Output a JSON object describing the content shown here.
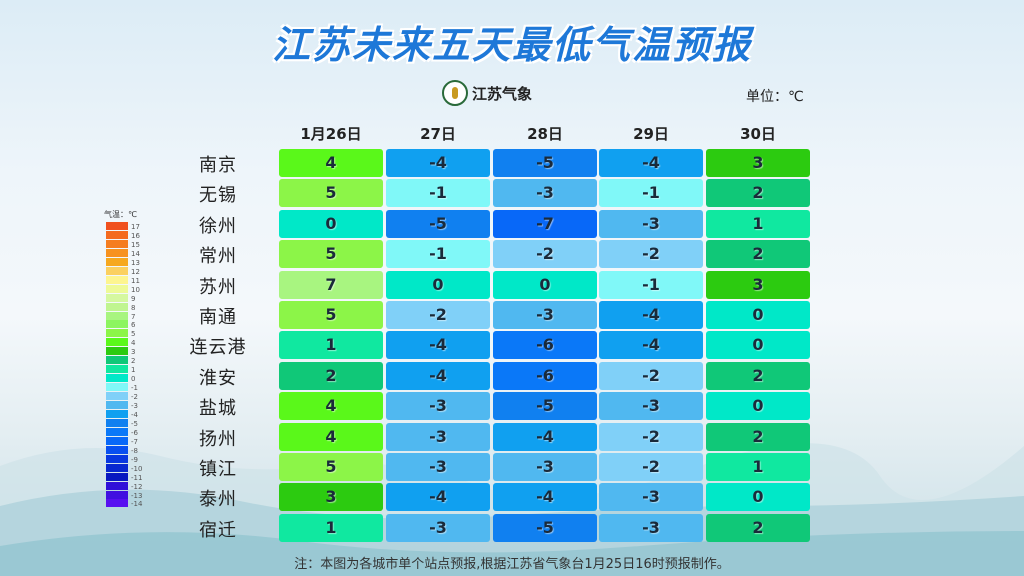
{
  "title": "江苏未来五天最低气温预报",
  "logo_text": "江苏气象",
  "unit": "单位：℃",
  "note": "注：本图为各城市单个站点预报,根据江苏省气象台1月25日16时预报制作。",
  "chart_data": {
    "type": "heatmap",
    "columns": [
      "1月26日",
      "27日",
      "28日",
      "29日",
      "30日"
    ],
    "rows": [
      "南京",
      "无锡",
      "徐州",
      "常州",
      "苏州",
      "南通",
      "连云港",
      "淮安",
      "盐城",
      "扬州",
      "镇江",
      "泰州",
      "宿迁"
    ],
    "values": [
      [
        4,
        -4,
        -5,
        -4,
        3
      ],
      [
        5,
        -1,
        -3,
        -1,
        2
      ],
      [
        0,
        -5,
        -7,
        -3,
        1
      ],
      [
        5,
        -1,
        -2,
        -2,
        2
      ],
      [
        7,
        0,
        0,
        -1,
        3
      ],
      [
        5,
        -2,
        -3,
        -4,
        0
      ],
      [
        1,
        -4,
        -6,
        -4,
        0
      ],
      [
        2,
        -4,
        -6,
        -2,
        2
      ],
      [
        4,
        -3,
        -5,
        -3,
        0
      ],
      [
        4,
        -3,
        -4,
        -2,
        2
      ],
      [
        5,
        -3,
        -3,
        -2,
        1
      ],
      [
        3,
        -4,
        -4,
        -3,
        0
      ],
      [
        1,
        -3,
        -5,
        -3,
        2
      ]
    ],
    "legend": {
      "title": "气温：℃",
      "levels": [
        17,
        16,
        15,
        14,
        13,
        12,
        11,
        10,
        9,
        8,
        7,
        6,
        5,
        4,
        3,
        2,
        1,
        0,
        -1,
        -2,
        -3,
        -4,
        -5,
        -6,
        -7,
        -8,
        -9,
        -10,
        -11,
        -12,
        -13,
        -14
      ],
      "colors": [
        "#f0501e",
        "#f46a1e",
        "#f57d20",
        "#f7921f",
        "#f6a81f",
        "#fbd060",
        "#fdf590",
        "#eefa98",
        "#d5f8a0",
        "#c0f590",
        "#a8f580",
        "#8cf560",
        "#8cf548",
        "#5af81a",
        "#2ccb10",
        "#10c878",
        "#10e8a0",
        "#00e8c8",
        "#80f8f8",
        "#80d0f8",
        "#50b8f0",
        "#10a0f0",
        "#1080f0",
        "#0a78f8",
        "#0868f8",
        "#0850f0",
        "#0838e0",
        "#0828d0",
        "#0818c0",
        "#3010d8",
        "#4010e0",
        "#5810f0"
      ]
    }
  }
}
